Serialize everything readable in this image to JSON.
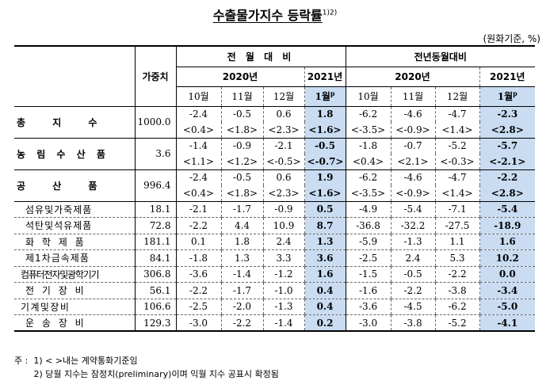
{
  "title": "수출물가지수 등락률",
  "title_sup": "1)2)",
  "unit": "(원화기준, %)",
  "header": {
    "weight": "가중치",
    "mom": "전 월 대 비",
    "yoy": "전년동월대비",
    "y2020": "2020년",
    "y2021": "2021년",
    "months": [
      "10월",
      "11월",
      "12월"
    ],
    "jan": "1월",
    "jan_sup": "p"
  },
  "main_rows": [
    {
      "label": "총 지 수",
      "weight": "1000.0",
      "v": [
        "-2.4",
        "-0.5",
        "0.6",
        "1.8",
        "-6.2",
        "-4.6",
        "-4.7",
        "-2.3"
      ],
      "c": [
        "<0.4>",
        "<1.8>",
        "<2.3>",
        "<1.6>",
        "<-3.5>",
        "<-0.9>",
        "<1.4>",
        "<2.8>"
      ]
    },
    {
      "label": "농 림 수 산 품",
      "weight": "3.6",
      "v": [
        "-1.4",
        "-0.9",
        "-2.1",
        "-0.5",
        "-1.8",
        "-0.7",
        "-5.2",
        "-5.7"
      ],
      "c": [
        "<1.1>",
        "<1.2>",
        "<-0.5>",
        "<-0.7>",
        "<0.4>",
        "<2.1>",
        "<-0.3>",
        "<-2.1>"
      ]
    },
    {
      "label": "공 산 품",
      "weight": "996.4",
      "v": [
        "-2.4",
        "-0.5",
        "0.6",
        "1.9",
        "-6.2",
        "-4.6",
        "-4.7",
        "-2.2"
      ],
      "c": [
        "<0.4>",
        "<1.8>",
        "<2.3>",
        "<1.6>",
        "<-3.5>",
        "<-0.9>",
        "<1.4>",
        "<2.8>"
      ]
    }
  ],
  "sub_rows": [
    {
      "label": "섬유및가죽제품",
      "weight": "18.1",
      "v": [
        "-2.1",
        "-1.7",
        "-0.9",
        "0.5",
        "-4.9",
        "-5.4",
        "-7.1",
        "-5.4"
      ]
    },
    {
      "label": "석탄및석유제품",
      "weight": "72.8",
      "v": [
        "-2.2",
        "4.4",
        "10.9",
        "8.7",
        "-36.8",
        "-32.2",
        "-27.5",
        "-18.9"
      ]
    },
    {
      "label": "화 학 제 품",
      "weight": "181.1",
      "v": [
        "0.1",
        "1.8",
        "2.4",
        "1.3",
        "-5.9",
        "-1.3",
        "1.1",
        "1.6"
      ]
    },
    {
      "label": "제1차금속제품",
      "weight": "84.1",
      "v": [
        "-1.8",
        "1.3",
        "3.3",
        "3.6",
        "-2.5",
        "2.4",
        "5.3",
        "10.2"
      ]
    },
    {
      "label": "컴퓨터전자및광학기기",
      "weight": "306.8",
      "v": [
        "-3.6",
        "-1.4",
        "-1.2",
        "1.6",
        "-1.5",
        "-0.5",
        "-2.2",
        "0.0"
      ]
    },
    {
      "label": "전 기 장 비",
      "weight": "56.1",
      "v": [
        "-2.2",
        "-1.7",
        "-1.0",
        "0.4",
        "-1.6",
        "-2.2",
        "-3.8",
        "-3.4"
      ]
    },
    {
      "label": "기 계 및 장 비",
      "weight": "106.6",
      "v": [
        "-2.5",
        "-2.0",
        "-1.3",
        "0.4",
        "-3.6",
        "-4.5",
        "-6.2",
        "-5.0"
      ]
    },
    {
      "label": "운 송 장 비",
      "weight": "129.3",
      "v": [
        "-3.0",
        "-2.2",
        "-1.4",
        "0.2",
        "-3.0",
        "-3.8",
        "-5.2",
        "-4.1"
      ]
    }
  ],
  "notes": [
    "주 :  1) < >내는 계약통화기준임",
    "       2) 당월 지수는 잠정치(preliminary)이며 익월 지수 공표시 확정됨"
  ]
}
